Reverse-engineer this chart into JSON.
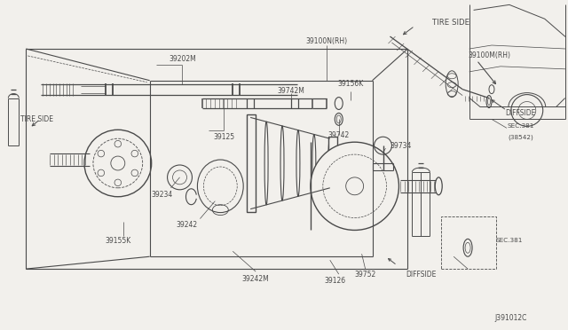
{
  "bg_color": "#f2f0ec",
  "line_color": "#4a4a4a",
  "diagram_code": "J391012C",
  "figsize": [
    6.4,
    3.72
  ],
  "dpi": 100,
  "white": "#ffffff",
  "labels": [
    [
      "39202M",
      2.05,
      3.06,
      5.5,
      "center"
    ],
    [
      "39100N(RH)",
      3.68,
      3.3,
      5.5,
      "center"
    ],
    [
      "TIRE SIDE",
      4.88,
      3.46,
      6.0,
      "center"
    ],
    [
      "39100M(RH)",
      5.52,
      3.08,
      5.5,
      "center"
    ],
    [
      "39125",
      2.52,
      2.2,
      5.5,
      "center"
    ],
    [
      "39742M",
      3.28,
      2.62,
      5.5,
      "center"
    ],
    [
      "39156K",
      3.95,
      2.75,
      5.5,
      "center"
    ],
    [
      "39742",
      3.82,
      2.24,
      5.5,
      "center"
    ],
    [
      "39734",
      4.52,
      2.05,
      5.5,
      "center"
    ],
    [
      "39234",
      1.82,
      1.55,
      5.5,
      "center"
    ],
    [
      "39242",
      2.12,
      1.2,
      5.5,
      "center"
    ],
    [
      "39155K",
      1.38,
      1.02,
      5.5,
      "center"
    ],
    [
      "39242M",
      2.88,
      0.6,
      5.5,
      "center"
    ],
    [
      "39126",
      3.82,
      0.58,
      5.5,
      "center"
    ],
    [
      "39752",
      4.18,
      0.65,
      5.5,
      "center"
    ],
    [
      "DIFFSIDE",
      4.58,
      0.65,
      5.5,
      "center"
    ],
    [
      "TIRE SIDE",
      0.22,
      2.35,
      5.5,
      "left"
    ],
    [
      "DIFFSIDE",
      5.88,
      2.42,
      5.5,
      "center"
    ],
    [
      "SEC.381",
      5.88,
      2.28,
      5.5,
      "center"
    ],
    [
      "(38542)",
      5.88,
      2.15,
      5.5,
      "center"
    ],
    [
      "SEC.381",
      5.75,
      1.02,
      5.5,
      "center"
    ],
    [
      "J391012C",
      5.95,
      0.12,
      5.5,
      "right"
    ]
  ]
}
